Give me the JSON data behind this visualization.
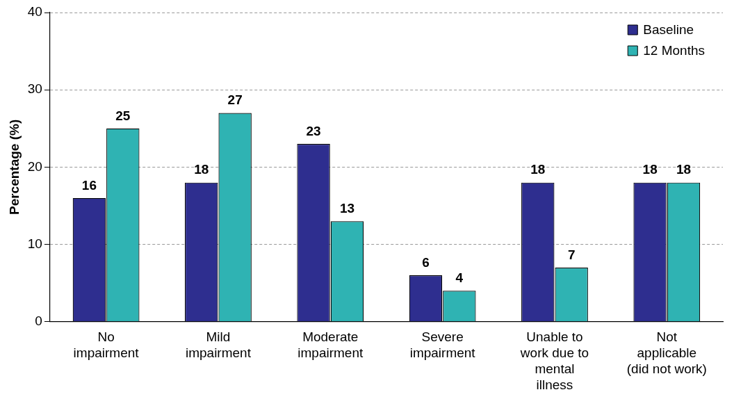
{
  "chart_data": {
    "type": "bar",
    "ylabel": "Percentage (%)",
    "categories": [
      "No\nimpairment",
      "Mild\nimpairment",
      "Moderate\nimpairment",
      "Severe\nimpairment",
      "Unable to\nwork due to\nmental\nillness",
      "Not\napplicable\n(did not work)"
    ],
    "series": [
      {
        "name": "Baseline",
        "color": "#2e2e8f",
        "values": [
          16,
          18,
          23,
          6,
          18,
          18
        ]
      },
      {
        "name": "12 Months",
        "color": "#2fb3b3",
        "values": [
          25,
          27,
          13,
          4,
          7,
          18
        ]
      }
    ],
    "ylim": [
      0,
      40
    ],
    "yticks": [
      0,
      10,
      20,
      30,
      40
    ],
    "grid": "y",
    "legend": "top right",
    "data_labels": true
  }
}
